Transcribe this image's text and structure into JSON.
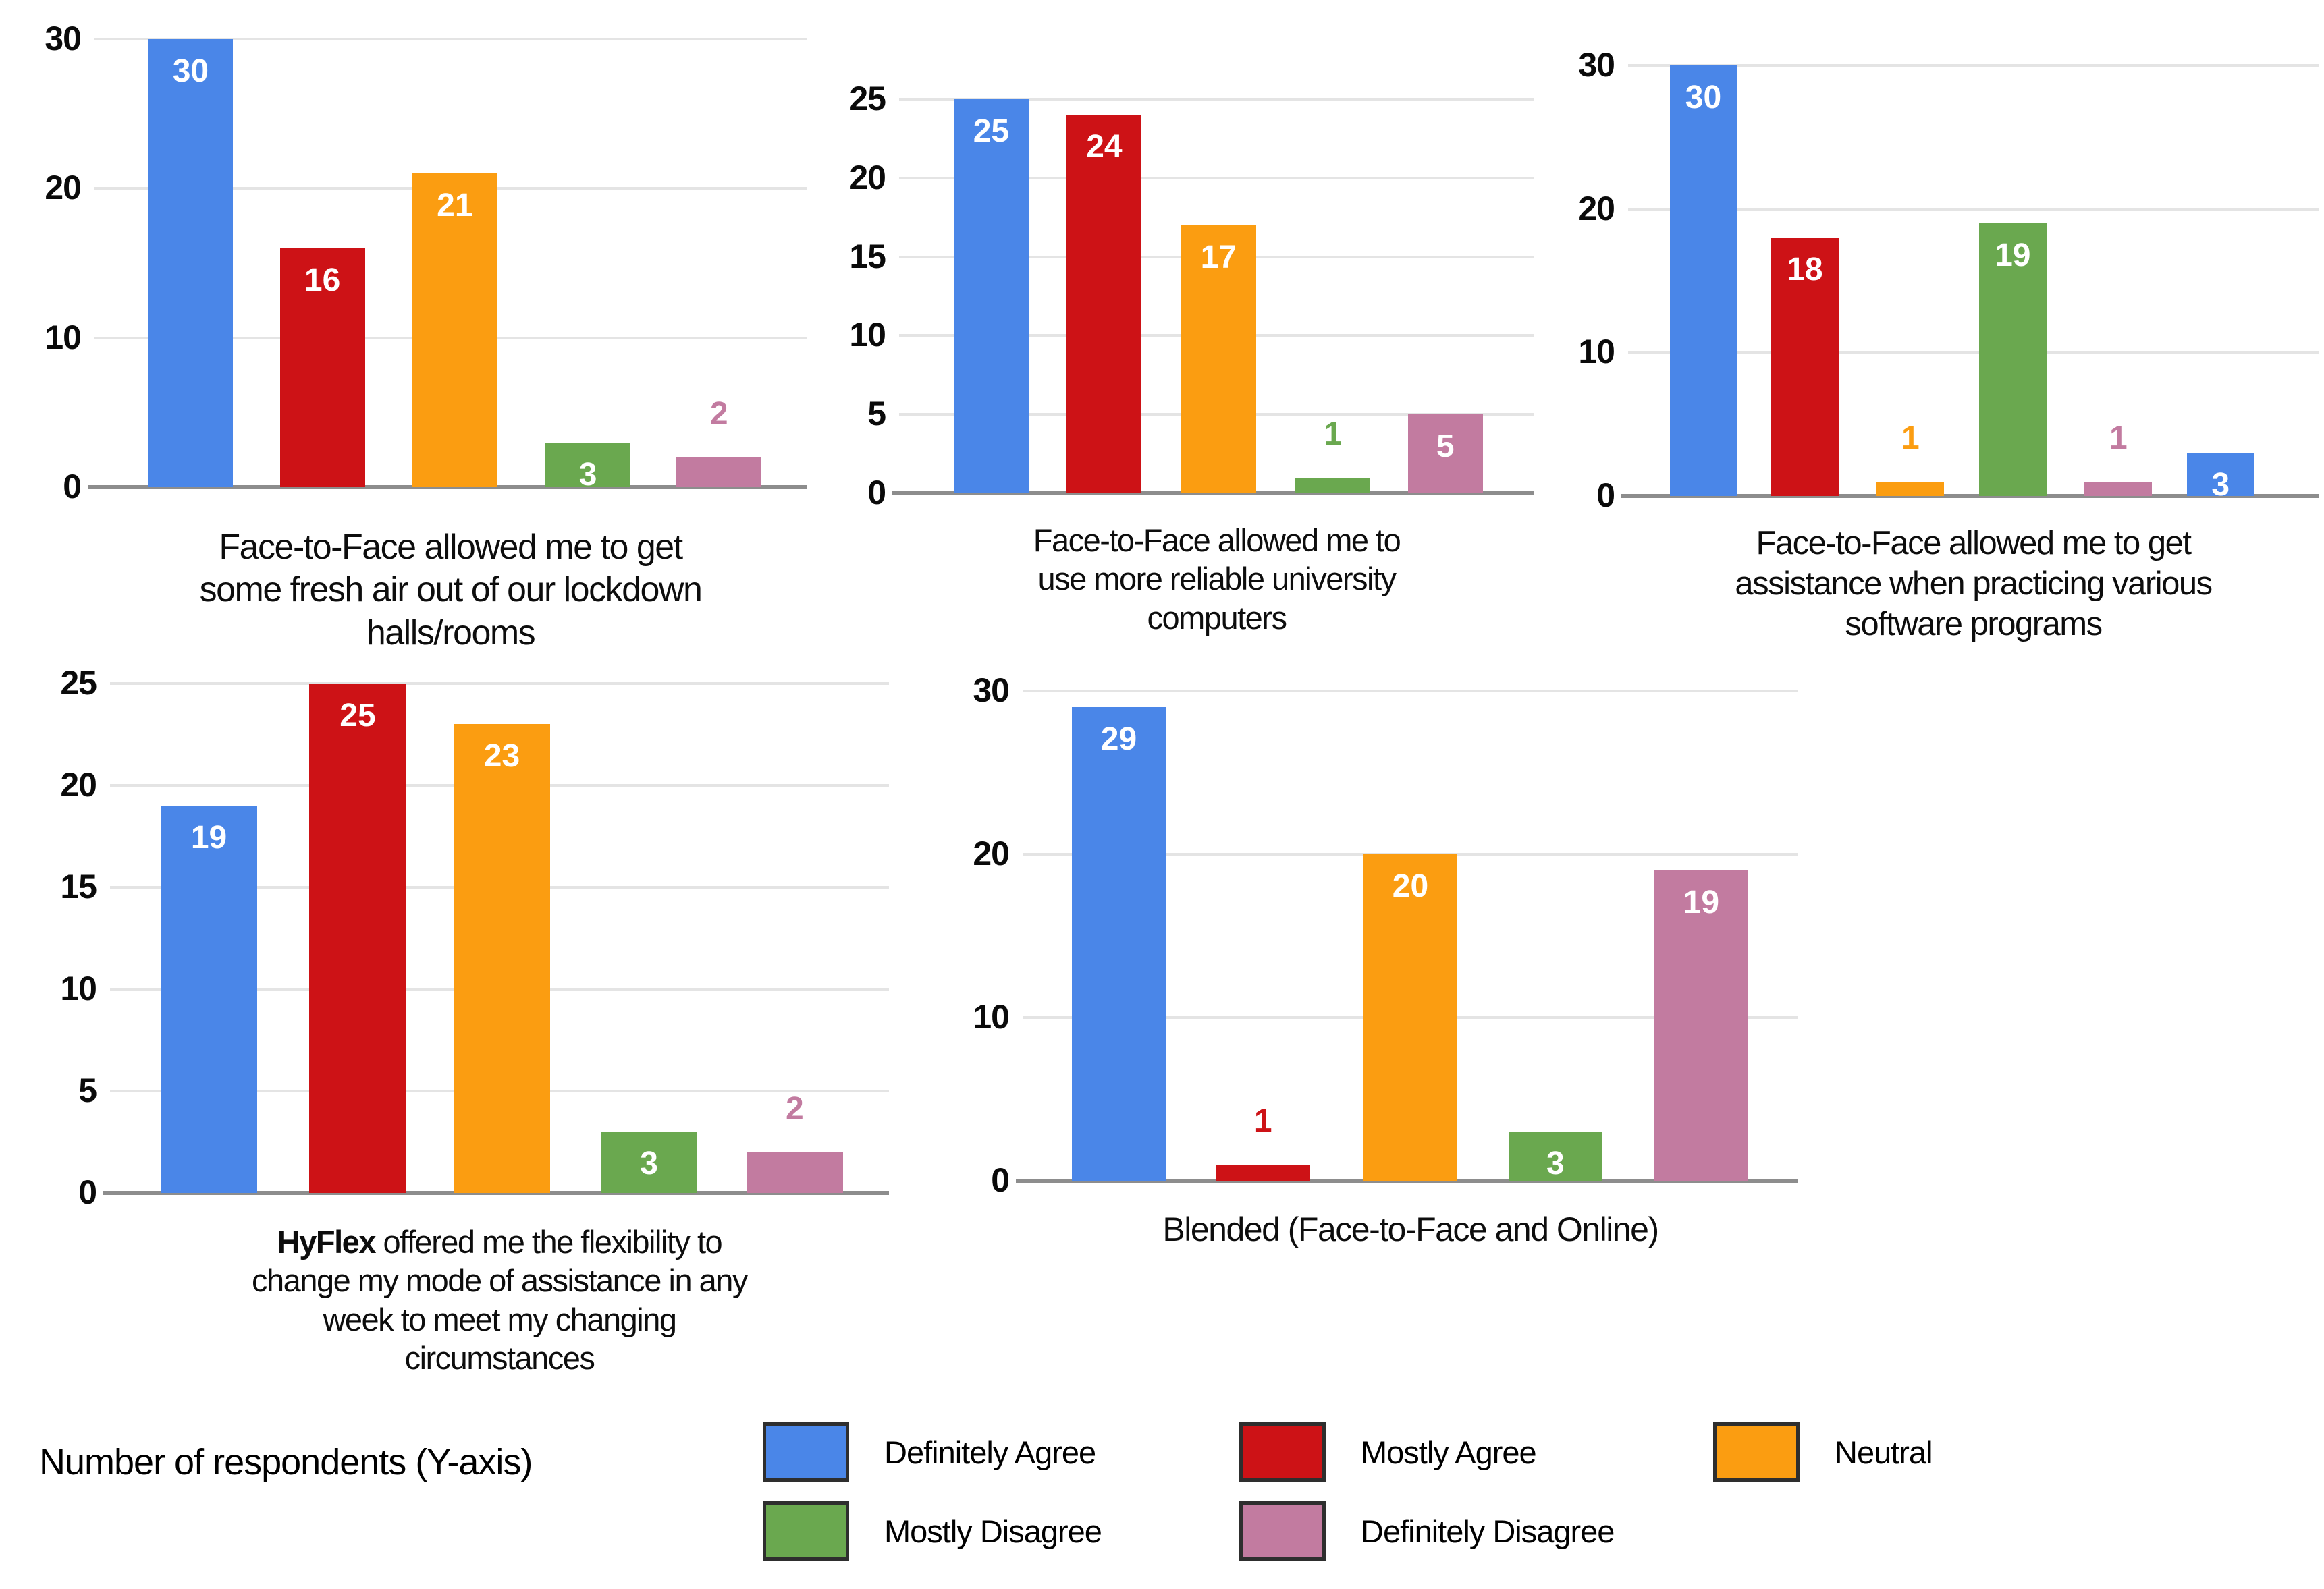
{
  "figure": {
    "axis_note": "Number of respondents (Y-axis)",
    "legend": [
      {
        "id": "definitely-agree",
        "label": "Definitely Agree",
        "color": "#4a86e8"
      },
      {
        "id": "mostly-agree",
        "label": "Mostly Agree",
        "color": "#cd1216"
      },
      {
        "id": "neutral",
        "label": "Neutral",
        "color": "#fb9d11"
      },
      {
        "id": "mostly-disagree",
        "label": "Mostly Disagree",
        "color": "#6aa84f"
      },
      {
        "id": "definitely-disagree",
        "label": "Definitely Disagree",
        "color": "#c27ba0"
      }
    ]
  },
  "chart_data": [
    {
      "type": "bar",
      "title": "Face-to-Face allowed me to get some fresh air out of our lockdown halls/rooms",
      "title_lines": [
        [
          {
            "text": "Face-to-Face allowed me to get",
            "bold": false
          }
        ],
        [
          {
            "text": "some fresh air out of our lockdown",
            "bold": false
          }
        ],
        [
          {
            "text": "halls/rooms",
            "bold": false
          }
        ]
      ],
      "categories": [
        "Definitely Agree",
        "Mostly Agree",
        "Neutral",
        "Mostly Disagree",
        "Definitely Disagree"
      ],
      "values": [
        30,
        16,
        21,
        3,
        2
      ],
      "bar_colors": [
        "#4a86e8",
        "#cd1216",
        "#fb9d11",
        "#6aa84f",
        "#c27ba0"
      ],
      "ylim": [
        0,
        30
      ],
      "yticks": [
        0,
        10,
        20,
        30
      ],
      "ylabel": "Number of respondents",
      "grid": true,
      "legend_position": "bottom"
    },
    {
      "type": "bar",
      "title": "Face-to-Face allowed me to use more reliable university computers",
      "title_lines": [
        [
          {
            "text": "Face-to-Face allowed me to",
            "bold": false
          }
        ],
        [
          {
            "text": "use more reliable university",
            "bold": false
          }
        ],
        [
          {
            "text": "computers",
            "bold": false
          }
        ]
      ],
      "categories": [
        "Definitely Agree",
        "Mostly Agree",
        "Neutral",
        "Mostly Disagree",
        "Definitely Disagree"
      ],
      "values": [
        25,
        24,
        17,
        1,
        5
      ],
      "bar_colors": [
        "#4a86e8",
        "#cd1216",
        "#fb9d11",
        "#6aa84f",
        "#c27ba0"
      ],
      "ylim": [
        0,
        25
      ],
      "yticks": [
        0,
        5,
        10,
        15,
        20,
        25
      ],
      "ylabel": "Number of respondents",
      "grid": true,
      "legend_position": "bottom"
    },
    {
      "type": "bar",
      "title": "Face-to-Face allowed me to get assistance when practicing various software programs",
      "title_lines": [
        [
          {
            "text": "Face-to-Face allowed me to get",
            "bold": false
          }
        ],
        [
          {
            "text": "assistance when practicing various",
            "bold": false
          }
        ],
        [
          {
            "text": "software programs",
            "bold": false
          }
        ]
      ],
      "categories": [
        "Definitely Agree",
        "Mostly Agree",
        "Neutral",
        "Mostly Disagree",
        "Definitely Disagree",
        "Definitely Agree"
      ],
      "values": [
        30,
        18,
        1,
        19,
        1,
        3
      ],
      "bar_colors": [
        "#4a86e8",
        "#cd1216",
        "#fb9d11",
        "#6aa84f",
        "#c27ba0",
        "#4a86e8"
      ],
      "ylim": [
        0,
        30
      ],
      "yticks": [
        0,
        10,
        20,
        30
      ],
      "ylabel": "Number of respondents",
      "grid": true,
      "legend_position": "bottom"
    },
    {
      "type": "bar",
      "title": "HyFlex offered me the flexibility to change my mode of assistance in any week to meet my changing circumstances",
      "title_lines": [
        [
          {
            "text": "HyFlex",
            "bold": true
          },
          {
            "text": " offered me the flexibility to",
            "bold": false
          }
        ],
        [
          {
            "text": "change my mode of assistance in any",
            "bold": false
          }
        ],
        [
          {
            "text": "week to meet my changing",
            "bold": false
          }
        ],
        [
          {
            "text": "circumstances",
            "bold": false
          }
        ]
      ],
      "categories": [
        "Definitely Agree",
        "Mostly Agree",
        "Neutral",
        "Mostly Disagree",
        "Definitely Disagree"
      ],
      "values": [
        19,
        25,
        23,
        3,
        2
      ],
      "bar_colors": [
        "#4a86e8",
        "#cd1216",
        "#fb9d11",
        "#6aa84f",
        "#c27ba0"
      ],
      "ylim": [
        0,
        25
      ],
      "yticks": [
        0,
        5,
        10,
        15,
        20,
        25
      ],
      "ylabel": "Number of respondents",
      "grid": true,
      "legend_position": "bottom"
    },
    {
      "type": "bar",
      "title": "Blended (Face-to-Face and Online)",
      "title_lines": [
        [
          {
            "text": "Blended (Face-to-Face and Online)",
            "bold": false
          }
        ]
      ],
      "categories": [
        "Definitely Agree",
        "Mostly Agree",
        "Neutral",
        "Mostly Disagree",
        "Definitely Disagree"
      ],
      "values": [
        29,
        1,
        20,
        3,
        19
      ],
      "bar_colors": [
        "#4a86e8",
        "#cd1216",
        "#fb9d11",
        "#6aa84f",
        "#c27ba0"
      ],
      "ylim": [
        0,
        30
      ],
      "yticks": [
        0,
        10,
        20,
        30
      ],
      "ylabel": "Number of respondents",
      "grid": true,
      "legend_position": "bottom"
    }
  ]
}
